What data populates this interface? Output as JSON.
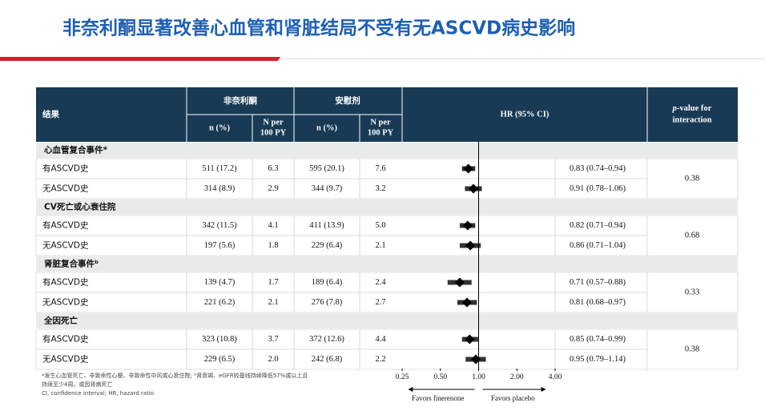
{
  "title": "非奈利酮显著改善心血管和肾脏结局不受有无ASCVD病史影响",
  "headers": {
    "outcome": "结果",
    "fin": "非奈利酮",
    "pla": "安慰剂",
    "n": "n (%)",
    "rate": [
      "N per",
      "100 PY"
    ],
    "hr": "HR (95% CI)",
    "p": [
      "p",
      "-value for",
      "interaction"
    ]
  },
  "groups": [
    {
      "name": "心血管复合事件*",
      "p": 0.38,
      "rows": [
        {
          "label": "有ASCVD史",
          "fin_n": "511 (17.2)",
          "fin_rate": "6.3",
          "pla_n": "595 (20.1)",
          "pla_rate": "7.6",
          "hr": 0.83,
          "ci": [
            0.74,
            0.94
          ],
          "hr_label": "0.83 (0.74–0.94)"
        },
        {
          "label": "无ASCVD史",
          "fin_n": "314 (8.9)",
          "fin_rate": "2.9",
          "pla_n": "344 (9.7)",
          "pla_rate": "3.2",
          "hr": 0.91,
          "ci": [
            0.78,
            1.06
          ],
          "hr_label": "0.91 (0.78–1.06)"
        }
      ]
    },
    {
      "name": "CV死亡或心衰住院",
      "p": 0.68,
      "rows": [
        {
          "label": "有ASCVD史",
          "fin_n": "342 (11.5)",
          "fin_rate": "4.1",
          "pla_n": "411 (13.9)",
          "pla_rate": "5.0",
          "hr": 0.82,
          "ci": [
            0.71,
            0.94
          ],
          "hr_label": "0.82 (0.71–0.94)"
        },
        {
          "label": "无ASCVD史",
          "fin_n": "197 (5.6)",
          "fin_rate": "1.8",
          "pla_n": "229 (6.4)",
          "pla_rate": "2.1",
          "hr": 0.86,
          "ci": [
            0.71,
            1.04
          ],
          "hr_label": "0.86 (0.71–1.04)"
        }
      ]
    },
    {
      "name": "肾脏复合事件ᵇ",
      "p": 0.33,
      "rows": [
        {
          "label": "有ASCVD史",
          "fin_n": "139 (4.7)",
          "fin_rate": "1.7",
          "pla_n": "189 (6.4)",
          "pla_rate": "2.4",
          "hr": 0.71,
          "ci": [
            0.57,
            0.88
          ],
          "hr_label": "0.71 (0.57–0.88)"
        },
        {
          "label": "无ASCVD史",
          "fin_n": "221 (6.2)",
          "fin_rate": "2.1",
          "pla_n": "276 (7.8)",
          "pla_rate": "2.7",
          "hr": 0.81,
          "ci": [
            0.68,
            0.97
          ],
          "hr_label": "0.81 (0.68–0.97)"
        }
      ]
    },
    {
      "name": "全因死亡",
      "p": 0.38,
      "rows": [
        {
          "label": "有ASCVD史",
          "fin_n": "323 (10.8)",
          "fin_rate": "3.7",
          "pla_n": "372 (12.6)",
          "pla_rate": "4.4",
          "hr": 0.85,
          "ci": [
            0.74,
            0.99
          ],
          "hr_label": "0.85 (0.74–0.99)"
        },
        {
          "label": "无ASCVD史",
          "fin_n": "229 (6.5)",
          "fin_rate": "2.0",
          "pla_n": "242 (6.8)",
          "pla_rate": "2.2",
          "hr": 0.95,
          "ci": [
            0.79,
            1.14
          ],
          "hr_label": "0.95 (0.79–1.14)"
        }
      ]
    }
  ],
  "forest": {
    "log": true,
    "xlim": [
      0.25,
      4
    ],
    "xticks": [
      0.25,
      {
        "value": 0.5,
        "label": "0.50"
      },
      {
        "value": 1,
        "label": "1.00"
      },
      {
        "value": 2,
        "label": "2.00"
      },
      {
        "value": 4,
        "label": "4.00"
      }
    ],
    "left_label": "Favors finerenone",
    "right_label": "Favors placebo"
  },
  "footnotes": [
    "*发生心血管死亡、非致命性心梗、非致命性中风或心衰住院; ᵇ肾衰竭、eGFR较基线持续降低57%或以上且",
    "持续至少4周，或因肾病死亡",
    "CI, confidence interval; HR, hazard ratio"
  ]
}
